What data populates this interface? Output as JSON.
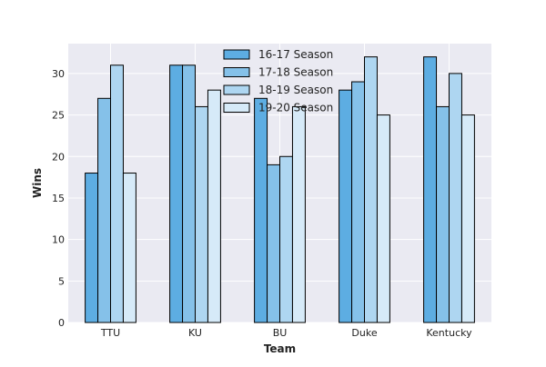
{
  "chart_data": {
    "type": "bar",
    "title": "",
    "xlabel": "Team",
    "ylabel": "Wins",
    "categories": [
      "TTU",
      "KU",
      "BU",
      "Duke",
      "Kentucky"
    ],
    "series": [
      {
        "name": "16-17 Season",
        "values": [
          18,
          31,
          27,
          28,
          32
        ],
        "color": "#5DADE2"
      },
      {
        "name": "17-18 Season",
        "values": [
          27,
          31,
          19,
          29,
          26
        ],
        "color": "#85C1E9"
      },
      {
        "name": "18-19 Season",
        "values": [
          31,
          26,
          20,
          32,
          30
        ],
        "color": "#AED6F1"
      },
      {
        "name": "19-20 Season",
        "values": [
          18,
          28,
          26,
          25,
          25
        ],
        "color": "#D6EAF8"
      }
    ],
    "ylim": [
      0,
      33.6
    ],
    "yticks": [
      0,
      5,
      10,
      15,
      20,
      25,
      30
    ],
    "grid": true,
    "legend_position": "upper-center",
    "plot_background": "#EAEAF2",
    "grid_color": "#FFFFFF",
    "bar_edge_color": "#000000"
  }
}
